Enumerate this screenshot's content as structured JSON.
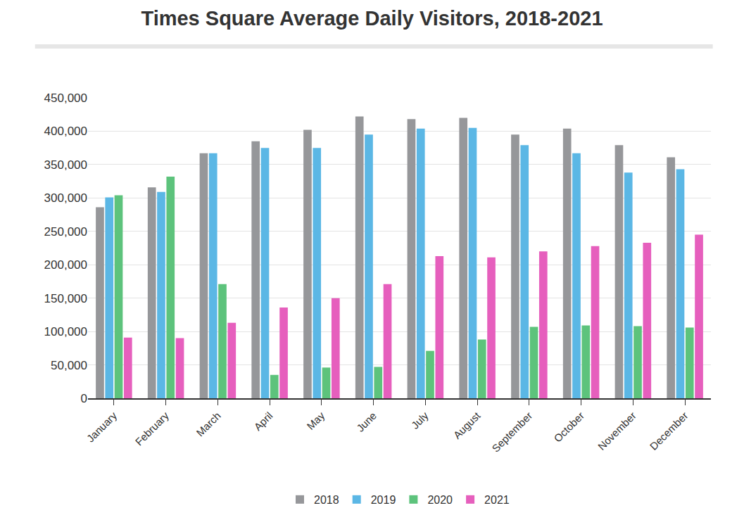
{
  "chart_data": {
    "type": "bar",
    "title": "Times Square Average Daily Visitors, 2018-2021",
    "categories": [
      "January",
      "February",
      "March",
      "April",
      "May",
      "June",
      "July",
      "August",
      "September",
      "October",
      "November",
      "December"
    ],
    "series": [
      {
        "name": "2018",
        "color": "#96979a",
        "values": [
          286000,
          316000,
          367000,
          385000,
          402000,
          422000,
          418000,
          420000,
          395000,
          404000,
          379000,
          361000
        ]
      },
      {
        "name": "2019",
        "color": "#5bb7e5",
        "values": [
          301000,
          309000,
          367000,
          375000,
          375000,
          395000,
          404000,
          405000,
          379000,
          367000,
          338000,
          343000
        ]
      },
      {
        "name": "2020",
        "color": "#5dc37c",
        "values": [
          304000,
          332000,
          171000,
          35000,
          46000,
          47000,
          71000,
          88000,
          107000,
          109000,
          108000,
          106000
        ]
      },
      {
        "name": "2021",
        "color": "#e65fbd",
        "values": [
          91000,
          90000,
          113000,
          136000,
          150000,
          171000,
          213000,
          211000,
          220000,
          228000,
          233000,
          245000
        ]
      }
    ],
    "ylim": [
      0,
      450000
    ],
    "yticks": [
      0,
      {
        "value": 50000,
        "label": "50,000"
      },
      {
        "value": 100000,
        "label": "100,000"
      },
      {
        "value": 150000,
        "label": "150,000"
      },
      {
        "value": 200000,
        "label": "200,000"
      },
      {
        "value": 250000,
        "label": "250,000"
      },
      {
        "value": 300000,
        "label": "300,000"
      },
      {
        "value": 350000,
        "label": "350,000"
      },
      {
        "value": 400000,
        "label": "400,000"
      },
      {
        "value": 450000,
        "label": "450,000"
      }
    ],
    "grid": true,
    "legend": "bottom"
  }
}
